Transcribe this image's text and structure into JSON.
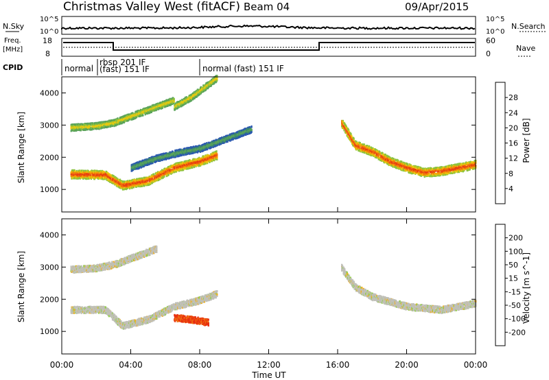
{
  "header": {
    "title": "Christmas Valley West (fitACF)",
    "beam": "Beam 04",
    "date": "09/Apr/2015"
  },
  "top_panels": {
    "nsky_label": "N.Sky",
    "nsearch_label": "N.Search",
    "nsky_ticks": [
      "10^5",
      "10^0"
    ],
    "nsky_right_ticks": [
      "10^5",
      "10^0"
    ],
    "freq_label": [
      "Freq.",
      "[MHz]"
    ],
    "freq_ticks": [
      "18",
      "8"
    ],
    "nave_ticks": [
      "60",
      "0"
    ],
    "nave_label": "Nave",
    "cpid_label": "CPID",
    "cpid_segments": [
      "normal",
      "rbsp 201 IF",
      "(fast) 151 IF",
      "normal (fast) 151 IF"
    ]
  },
  "chart_data": [
    {
      "type": "heatmap",
      "name": "power",
      "ylabel": "Slant Range [km]",
      "yticks": [
        "1000",
        "2000",
        "3000",
        "4000"
      ],
      "ylim": [
        300,
        4500
      ],
      "xlim": [
        0,
        24
      ],
      "colorbar": {
        "label": "Power [dB]",
        "ticks": [
          "4",
          "8",
          "12",
          "16",
          "20",
          "24",
          "28"
        ],
        "colors": [
          "#1a1aff",
          "#2a58b0",
          "#3d8a6a",
          "#5aa35a",
          "#8cc23c",
          "#e8c810",
          "#f5a000",
          "#f07010",
          "#e84010",
          "#d81010"
        ]
      },
      "bands": [
        {
          "from": [
            0,
            1500
          ],
          "points": [
            [
              0.5,
              1500
            ],
            [
              2.5,
              1480
            ],
            [
              3.5,
              1150
            ],
            [
              5,
              1300
            ],
            [
              6.5,
              1700
            ],
            [
              8,
              1900
            ],
            [
              9,
              2100
            ]
          ],
          "level": "high"
        },
        {
          "points": [
            [
              0.5,
              2950
            ],
            [
              2,
              3000
            ],
            [
              3,
              3100
            ],
            [
              4.5,
              3400
            ],
            [
              5.5,
              3600
            ],
            [
              6.5,
              3800
            ]
          ],
          "level": "mid"
        },
        {
          "points": [
            [
              4,
              1700
            ],
            [
              5.5,
              2000
            ],
            [
              7,
              2200
            ],
            [
              8,
              2300
            ],
            [
              9,
              2500
            ],
            [
              10,
              2700
            ],
            [
              11,
              2900
            ]
          ],
          "level": "low"
        },
        {
          "points": [
            [
              16.2,
              3100
            ],
            [
              17,
              2400
            ],
            [
              18,
              2200
            ],
            [
              19,
              1900
            ],
            [
              20,
              1700
            ],
            [
              21,
              1550
            ],
            [
              22,
              1600
            ],
            [
              24,
              1800
            ]
          ],
          "level": "high"
        },
        {
          "points": [
            [
              6.5,
              3600
            ],
            [
              7.5,
              3900
            ],
            [
              8.5,
              4300
            ],
            [
              9,
              4500
            ]
          ],
          "level": "mid"
        }
      ]
    },
    {
      "type": "heatmap",
      "name": "velocity",
      "xlabel": "Time UT",
      "ylabel": "Slant Range [km]",
      "xticks": [
        "00:00",
        "04:00",
        "08:00",
        "12:00",
        "16:00",
        "20:00",
        "00:00"
      ],
      "yticks": [
        "1000",
        "2000",
        "3000",
        "4000"
      ],
      "ylim": [
        300,
        4500
      ],
      "xlim": [
        0,
        24
      ],
      "colorbar": {
        "label": "Velocity [m s^-1]",
        "ticks": [
          "200",
          "100",
          "50",
          "15",
          "-15",
          "-50",
          "-100",
          "-200"
        ],
        "colors": [
          "#2040c0",
          "#306a60",
          "#50a050",
          "#90d040",
          "#c0c0b8",
          "#f0b020",
          "#f07010",
          "#e83010",
          "#d81010"
        ]
      },
      "bands": [
        {
          "points": [
            [
              0.5,
              1700
            ],
            [
              2.5,
              1700
            ],
            [
              3.5,
              1200
            ],
            [
              5,
              1400
            ],
            [
              6.5,
              1800
            ],
            [
              8,
              2000
            ],
            [
              9,
              2200
            ]
          ],
          "level": "gray"
        },
        {
          "points": [
            [
              0.5,
              2950
            ],
            [
              2,
              3000
            ],
            [
              3,
              3100
            ],
            [
              4.5,
              3400
            ],
            [
              5.5,
              3600
            ]
          ],
          "level": "gray"
        },
        {
          "points": [
            [
              16.2,
              3000
            ],
            [
              17,
              2400
            ],
            [
              18,
              2100
            ],
            [
              20,
              1800
            ],
            [
              22,
              1700
            ],
            [
              24,
              1900
            ]
          ],
          "level": "gray"
        },
        {
          "points": [
            [
              6.5,
              1450
            ],
            [
              7.5,
              1400
            ],
            [
              8.5,
              1300
            ]
          ],
          "level": "neg"
        }
      ]
    }
  ]
}
